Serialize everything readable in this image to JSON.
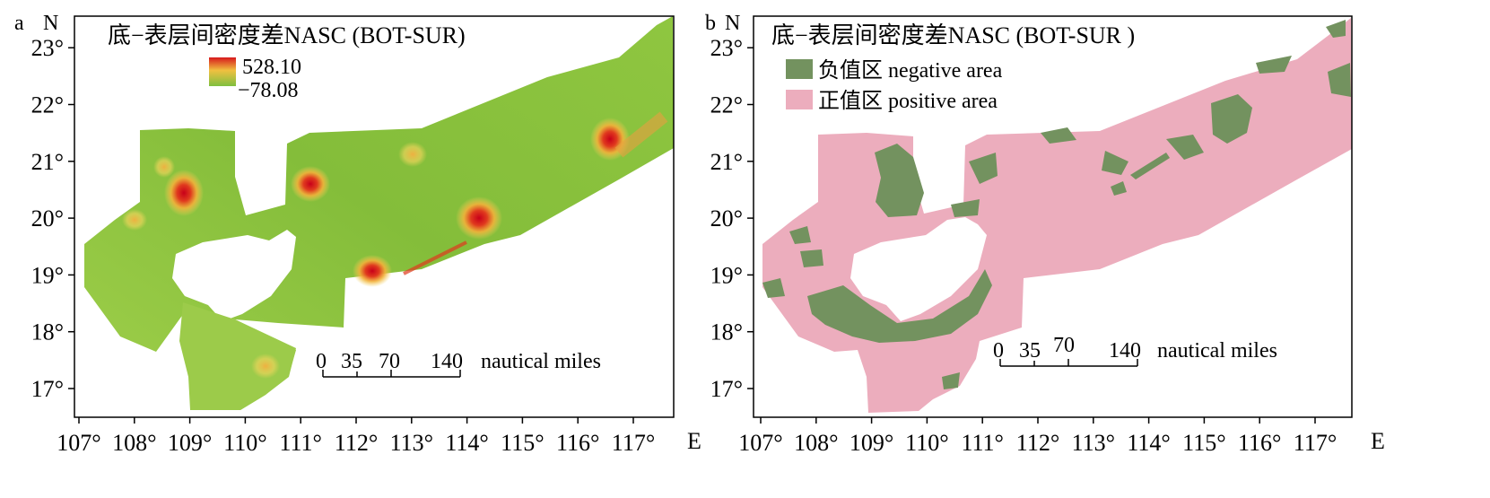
{
  "panels": [
    {
      "panel_label": "a",
      "north_label": "N",
      "east_label": "E",
      "title": "底−表层间密度差NASC (BOT-SUR)",
      "legend": {
        "type": "gradient",
        "max_label": "528.10",
        "min_label": "−78.08",
        "colors": [
          "#d7191c",
          "#fdae61",
          "#a6d96a",
          "#7fbf3f"
        ]
      },
      "scale_bar": {
        "ticks": [
          "0",
          "35",
          "70",
          "140"
        ],
        "unit": "nautical miles"
      },
      "x_ticks": [
        "107°",
        "108°",
        "109°",
        "110°",
        "111°",
        "112°",
        "113°",
        "114°",
        "115°",
        "116°",
        "117°"
      ],
      "y_ticks": [
        "23°",
        "22°",
        "21°",
        "20°",
        "19°",
        "18°",
        "17°"
      ],
      "hotspots": [
        {
          "lon": 108.8,
          "lat": 20.45,
          "value": "high"
        },
        {
          "lon": 111.0,
          "lat": 20.6,
          "value": "high"
        },
        {
          "lon": 114.0,
          "lat": 20.0,
          "value": "peak"
        },
        {
          "lon": 112.1,
          "lat": 19.1,
          "value": "high"
        },
        {
          "lon": 116.2,
          "lat": 21.4,
          "value": "high"
        },
        {
          "lon": 110.2,
          "lat": 17.4,
          "value": "medium"
        },
        {
          "lon": 108.4,
          "lat": 20.9,
          "value": "medium"
        }
      ]
    },
    {
      "panel_label": "b",
      "north_label": "N",
      "east_label": "E",
      "title": "底−表层间密度差NASC (BOT-SUR )",
      "legend": {
        "type": "categorical",
        "items": [
          {
            "label": "负值区 negative area",
            "color": "#73925f"
          },
          {
            "label": "正值区 positive area",
            "color": "#ecadbd"
          }
        ]
      },
      "scale_bar": {
        "ticks": [
          "0",
          "35",
          "70",
          "140"
        ],
        "unit": "nautical miles"
      },
      "x_ticks": [
        "107°",
        "108°",
        "109°",
        "110°",
        "111°",
        "112°",
        "113°",
        "114°",
        "115°",
        "116°",
        "117°"
      ],
      "y_ticks": [
        "23°",
        "22°",
        "21°",
        "20°",
        "19°",
        "18°",
        "17°"
      ]
    }
  ],
  "colors": {
    "green_base": "#8cc63f",
    "pink_positive": "#ecadbd",
    "green_negative": "#73925f",
    "frame": "#000000"
  }
}
